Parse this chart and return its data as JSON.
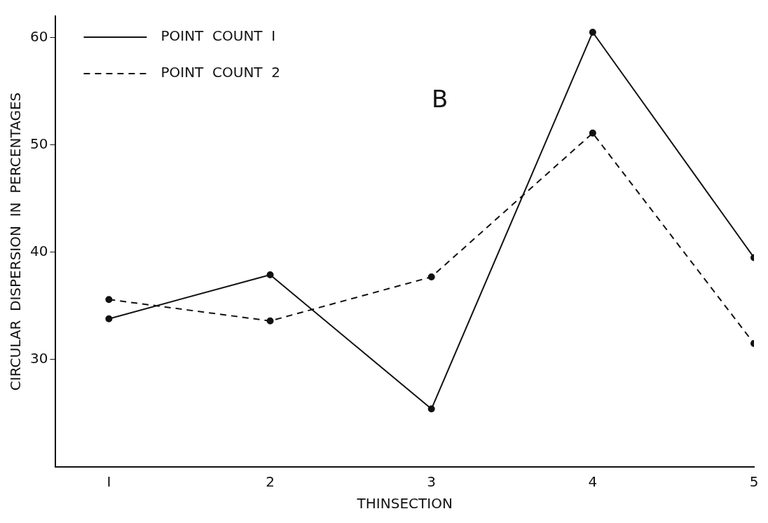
{
  "chart_data": {
    "type": "line",
    "xlabel": "THINSECTION",
    "ylabel": "CIRCULAR  DISPERSION  IN  PERCENTAGES",
    "annotations": [
      "B"
    ],
    "x": [
      1,
      2,
      3,
      4,
      5
    ],
    "xlim": [
      0.67,
      5
    ],
    "xticks": [
      {
        "value": 1,
        "label": "I"
      },
      2,
      3,
      4,
      5
    ],
    "ylim": [
      20,
      62
    ],
    "yticks": [
      30,
      40,
      50,
      60
    ],
    "series": [
      {
        "name": "POINT  COUNT  I",
        "color": "#111111",
        "line_style": "solid",
        "values": [
          33.8,
          37.9,
          25.4,
          60.5,
          39.5
        ]
      },
      {
        "name": "POINT  COUNT  2",
        "color": "#111111",
        "line_style": "dashed",
        "values": [
          35.6,
          33.6,
          37.7,
          51.1,
          31.5
        ]
      }
    ],
    "marker": "circle",
    "grid": false,
    "legend": "top left"
  }
}
